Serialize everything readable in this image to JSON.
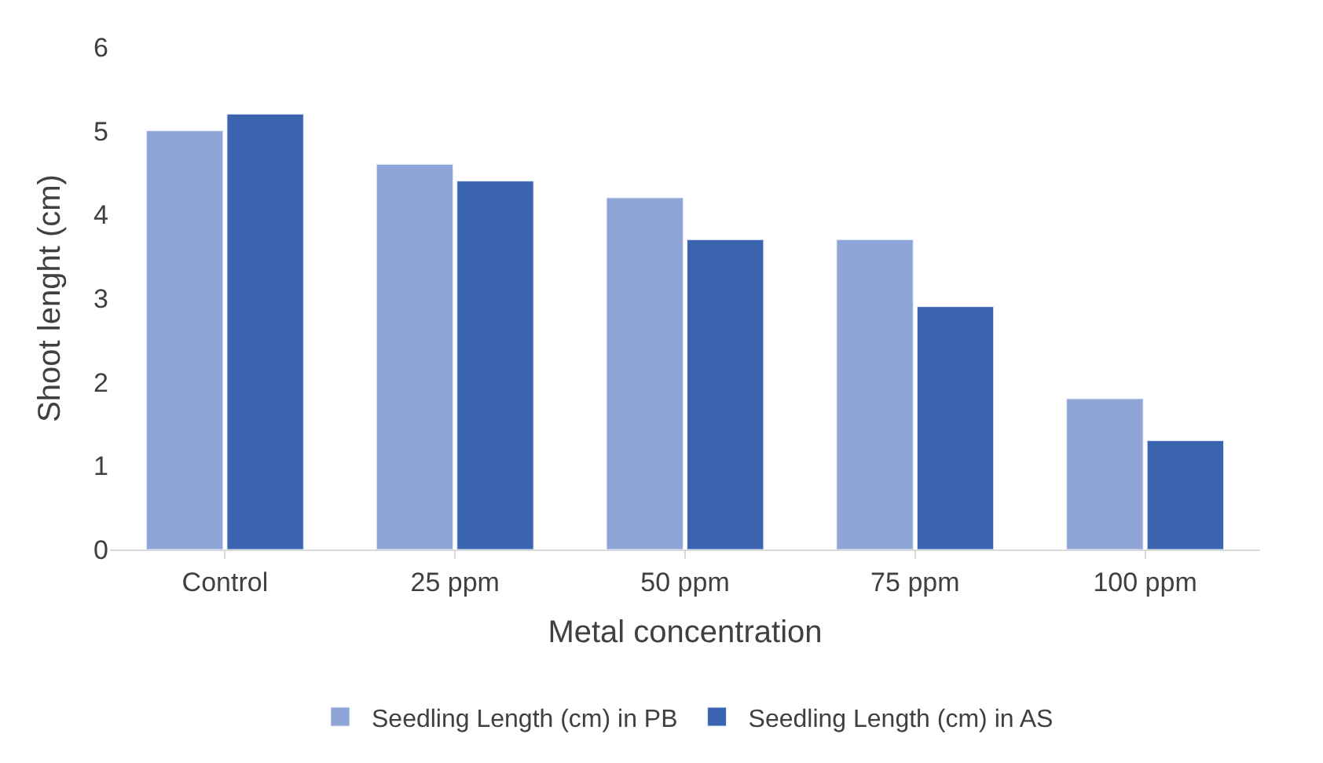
{
  "chart_data": {
    "type": "bar",
    "xlabel": "Metal concentration",
    "ylabel": "Shoot lenght (cm)",
    "categories": [
      "Control",
      "25 ppm",
      "50 ppm",
      "75 ppm",
      "100 ppm"
    ],
    "series": [
      {
        "name": "Seedling Length (cm) in PB",
        "color": "#8fa5d8",
        "values": [
          5.0,
          4.6,
          4.2,
          3.7,
          1.8
        ]
      },
      {
        "name": "Seedling Length (cm) in AS",
        "color": "#3b64b0",
        "values": [
          5.2,
          4.4,
          3.7,
          2.9,
          1.3
        ]
      }
    ],
    "ylim": [
      0,
      6
    ],
    "yticks": [
      0,
      1,
      2,
      3,
      4,
      5,
      6
    ],
    "grid": false,
    "legend": "bottom"
  }
}
